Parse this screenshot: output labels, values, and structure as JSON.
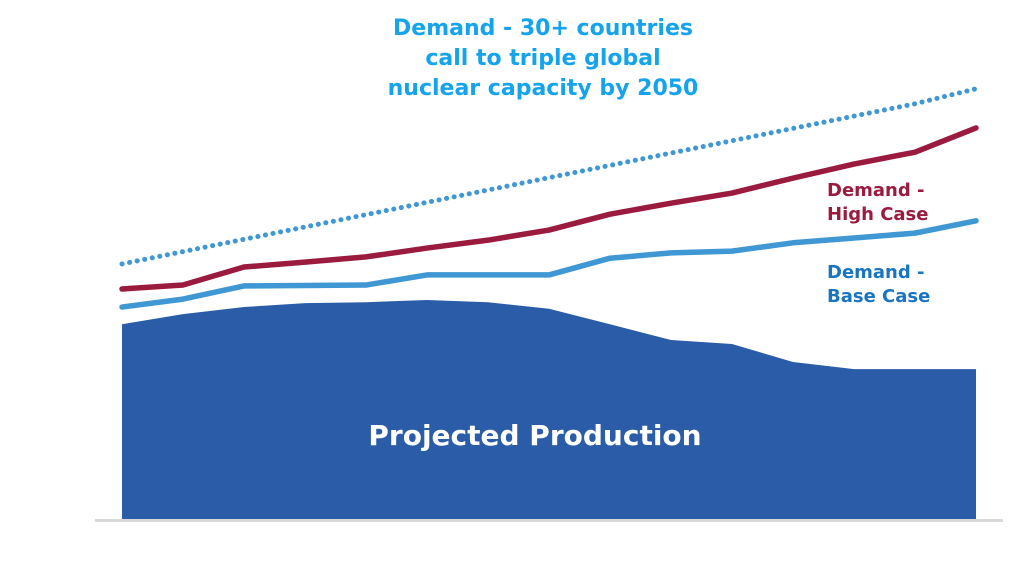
{
  "chart_data": {
    "type": "line",
    "title": "",
    "xlabel": "",
    "ylabel": "",
    "grid": false,
    "legend": "inline-annotations",
    "x": [
      0,
      1,
      2,
      3,
      4,
      5,
      6,
      7,
      8,
      9,
      10,
      11,
      12,
      13,
      14
    ],
    "ylim": [
      0,
      100
    ],
    "series": [
      {
        "name": "Projected Production",
        "kind": "area",
        "color": "#2b5ca8",
        "label_color": "#ffffff",
        "values": [
          44.5,
          46.8,
          48.4,
          49.3,
          49.5,
          50.0,
          49.5,
          48.0,
          44.5,
          40.9,
          40.0,
          35.9,
          34.3,
          34.3,
          34.3
        ]
      },
      {
        "name": "Demand - Base Case",
        "kind": "line",
        "color": "#3f97d3",
        "label_color": "#1a75c0",
        "values": [
          48.4,
          50.2,
          53.2,
          53.3,
          53.4,
          55.7,
          55.7,
          55.7,
          59.5,
          60.7,
          61.1,
          63.0,
          64.1,
          65.2,
          68.0
        ]
      },
      {
        "name": "Demand - High Case",
        "kind": "line",
        "color": "#9b1b3f",
        "label_color": "#9b1b3f",
        "values": [
          52.5,
          53.4,
          57.5,
          58.6,
          59.8,
          61.8,
          63.6,
          65.9,
          69.5,
          72.0,
          74.3,
          77.7,
          80.9,
          83.6,
          89.1
        ]
      },
      {
        "name": "Demand - 30+ countries call to triple global nuclear capacity by 2050",
        "kind": "dotted",
        "color": "#3f97d3",
        "label_color": "#15a4ec",
        "values": [
          58.2,
          61.0,
          63.8,
          66.6,
          69.4,
          72.2,
          75.0,
          77.8,
          80.6,
          83.4,
          86.2,
          89.0,
          91.8,
          94.6,
          98.0
        ]
      }
    ],
    "annotations": {
      "tripling": [
        "Demand - 30+ countries",
        "call to triple global",
        "nuclear capacity by 2050"
      ],
      "high": [
        "Demand -",
        "High Case"
      ],
      "base": [
        "Demand -",
        "Base Case"
      ],
      "production": "Projected Production"
    },
    "axis_color": "#d9d9d9"
  }
}
